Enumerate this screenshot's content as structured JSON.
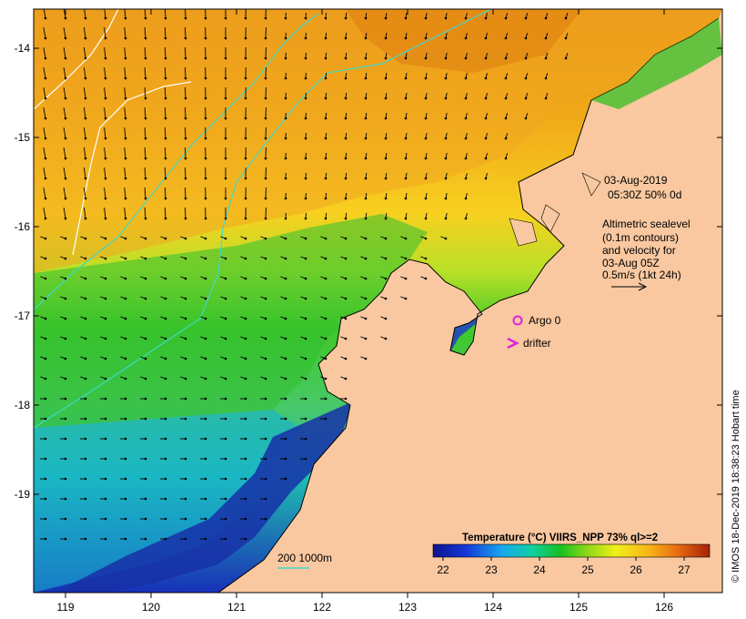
{
  "map": {
    "lon_ticks": [
      "119",
      "120",
      "121",
      "122",
      "123",
      "124",
      "125",
      "126"
    ],
    "lat_ticks": [
      "-14",
      "-15",
      "-16",
      "-17",
      "-18",
      "-19"
    ],
    "date": "03-Aug-2019",
    "time_line": "05:30Z  50% 0d",
    "altimetry_lines": [
      "Altimetric sealevel",
      "(0.1m contours)",
      "and velocity for",
      "03-Aug 05Z",
      "0.5m/s (1kt 24h)"
    ],
    "argo_label": "Argo 0",
    "drifter_label": "drifter",
    "depth_legend": "200  1000m",
    "colorbar_title": "Temperature (°C) VIIRS_NPP 73% ql>=2",
    "colorbar_ticks": [
      "22",
      "23",
      "24",
      "25",
      "26",
      "27"
    ],
    "credit": "© IMOS 18-Dec-2019 18:38:23 Hobart time",
    "colors": {
      "land": "#f9c8a0",
      "argo": "#e020e0",
      "drifter": "#e020e0",
      "isobath": "#40d8c8",
      "sealevel_contour": "#ffffff"
    }
  }
}
